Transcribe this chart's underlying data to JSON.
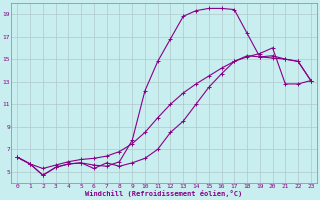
{
  "xlabel": "Windchill (Refroidissement éolien,°C)",
  "ylabel": "",
  "bg_color": "#c8eef0",
  "grid_color": "#b0c8cc",
  "line_color": "#880088",
  "xlim": [
    -0.5,
    23.5
  ],
  "ylim": [
    4,
    20
  ],
  "xticks": [
    0,
    1,
    2,
    3,
    4,
    5,
    6,
    7,
    8,
    9,
    10,
    11,
    12,
    13,
    14,
    15,
    16,
    17,
    18,
    19,
    20,
    21,
    22,
    23
  ],
  "yticks": [
    5,
    7,
    9,
    11,
    13,
    15,
    17,
    19
  ],
  "curve1_x": [
    0,
    1,
    2,
    3,
    4,
    5,
    6,
    7,
    8,
    9,
    10,
    11,
    12,
    13,
    14,
    15,
    16,
    17,
    18,
    19,
    20,
    21,
    22,
    23
  ],
  "curve1_y": [
    6.3,
    5.7,
    4.7,
    5.4,
    5.7,
    5.8,
    5.6,
    5.5,
    5.9,
    7.8,
    12.2,
    14.8,
    16.8,
    18.8,
    19.3,
    19.5,
    19.5,
    19.4,
    17.3,
    15.2,
    15.1,
    15.0,
    14.8,
    13.1
  ],
  "curve2_x": [
    0,
    1,
    2,
    3,
    4,
    5,
    6,
    7,
    8,
    9,
    10,
    11,
    12,
    13,
    14,
    15,
    16,
    17,
    18,
    19,
    20,
    21,
    22,
    23
  ],
  "curve2_y": [
    6.3,
    5.7,
    4.7,
    5.4,
    5.7,
    5.8,
    5.3,
    5.8,
    5.5,
    5.8,
    6.2,
    7.0,
    8.5,
    9.5,
    11.0,
    12.5,
    13.7,
    14.8,
    15.3,
    15.2,
    15.3,
    15.0,
    14.8,
    13.1
  ],
  "curve3_x": [
    0,
    1,
    2,
    3,
    4,
    5,
    6,
    7,
    8,
    9,
    10,
    11,
    12,
    13,
    14,
    15,
    16,
    17,
    18,
    19,
    20,
    21,
    22,
    23
  ],
  "curve3_y": [
    6.3,
    5.7,
    5.3,
    5.6,
    5.9,
    6.1,
    6.2,
    6.4,
    6.8,
    7.5,
    8.5,
    9.8,
    11.0,
    12.0,
    12.8,
    13.5,
    14.2,
    14.8,
    15.2,
    15.5,
    16.0,
    12.8,
    12.8,
    13.1
  ]
}
